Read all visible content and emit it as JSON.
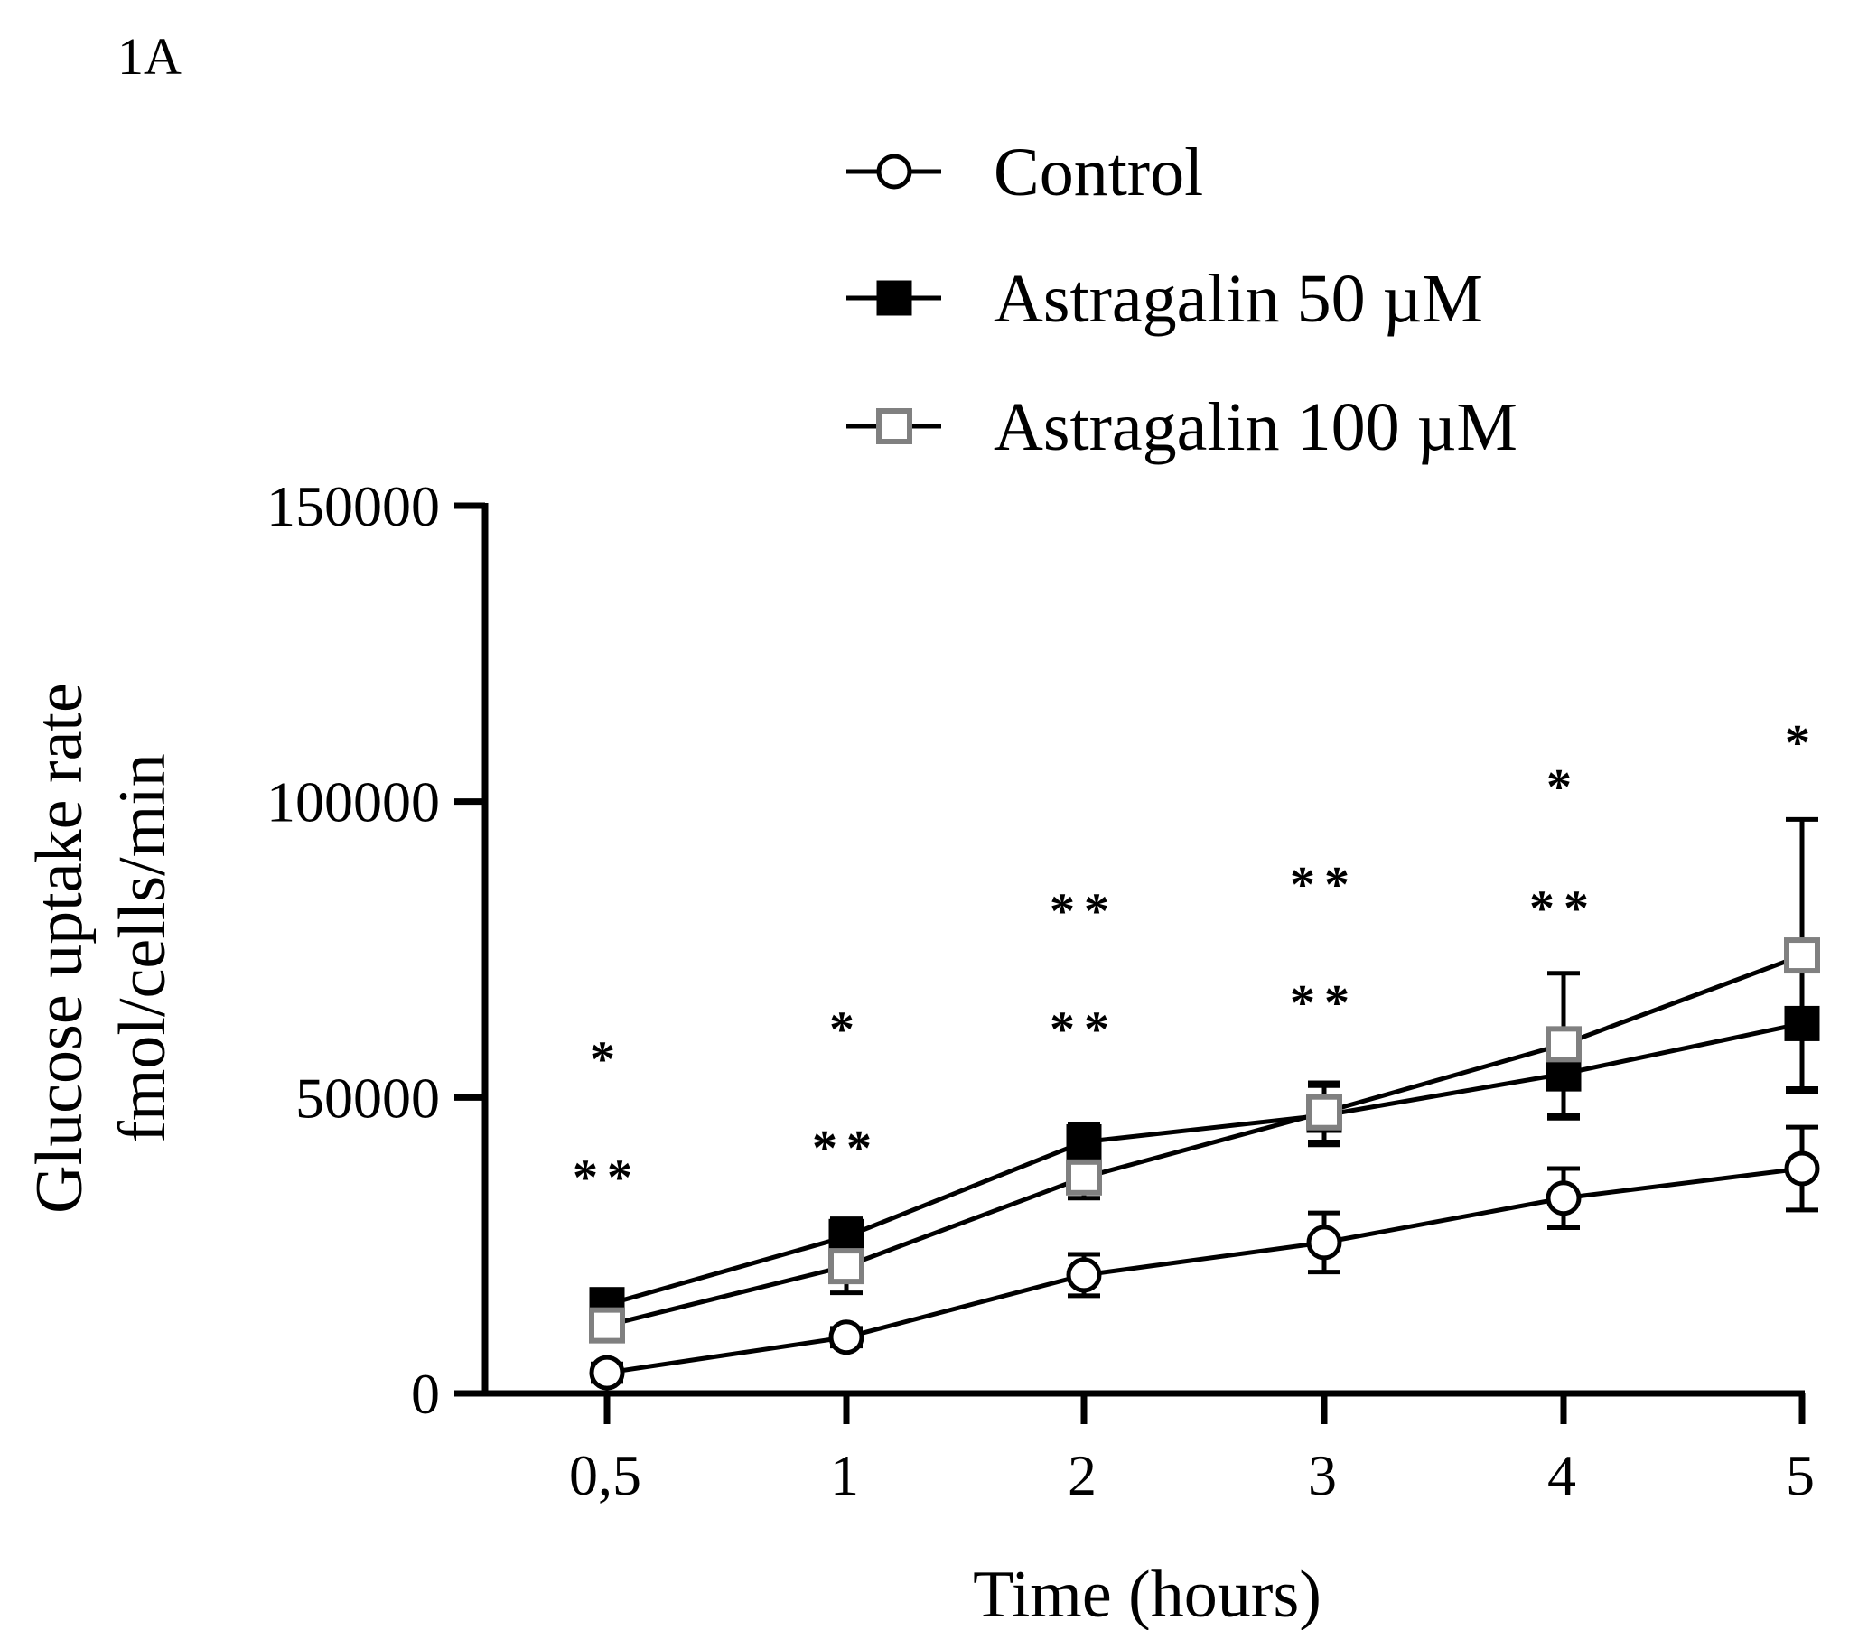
{
  "panel_label": "1A",
  "chart_data": {
    "type": "line",
    "title": "",
    "xlabel": "Time (hours)",
    "ylabel": [
      "Glucose uptake rate",
      "fmol/cells/min"
    ],
    "x_tick_labels": [
      "0,5",
      "1",
      "2",
      "3",
      "4",
      "5"
    ],
    "y_ticks": [
      0,
      50000,
      100000,
      150000
    ],
    "y_tick_labels": [
      "0",
      "50000",
      "100000",
      "150000"
    ],
    "ylim": [
      0,
      150000
    ],
    "legend_position": "top-right",
    "grid": false,
    "series": [
      {
        "name": "Control",
        "marker": "open-circle",
        "color": "#000000",
        "values": [
          3500,
          9500,
          20000,
          25500,
          33000,
          38000
        ],
        "error": [
          1500,
          1500,
          3500,
          5000,
          5000,
          7000
        ]
      },
      {
        "name": "Astragalin 50 µM",
        "marker": "filled-square",
        "color": "#000000",
        "values": [
          15000,
          26500,
          42500,
          47000,
          54000,
          62500
        ],
        "error": [
          2000,
          3000,
          3000,
          5000,
          7500,
          11000
        ]
      },
      {
        "name": "Astragalin 100 µM",
        "marker": "open-square",
        "color": "#808080",
        "values": [
          11500,
          21500,
          36500,
          47500,
          59000,
          74000
        ],
        "error": [
          2000,
          4500,
          3500,
          5000,
          12000,
          23000
        ]
      }
    ],
    "annotations": [
      {
        "x_index": 0,
        "text": "*",
        "y": 57000
      },
      {
        "x_index": 0,
        "text": "**",
        "y": 37000
      },
      {
        "x_index": 1,
        "text": "*",
        "y": 62000
      },
      {
        "x_index": 1,
        "text": "**",
        "y": 42000
      },
      {
        "x_index": 2,
        "text": "**",
        "y": 82000
      },
      {
        "x_index": 2,
        "text": "**",
        "y": 62000
      },
      {
        "x_index": 3,
        "text": "**",
        "y": 86500
      },
      {
        "x_index": 3,
        "text": "**",
        "y": 66500
      },
      {
        "x_index": 4,
        "text": "*",
        "y": 103000
      },
      {
        "x_index": 4,
        "text": "**",
        "y": 82500
      },
      {
        "x_index": 5,
        "text": "*",
        "y": 110500
      }
    ]
  }
}
